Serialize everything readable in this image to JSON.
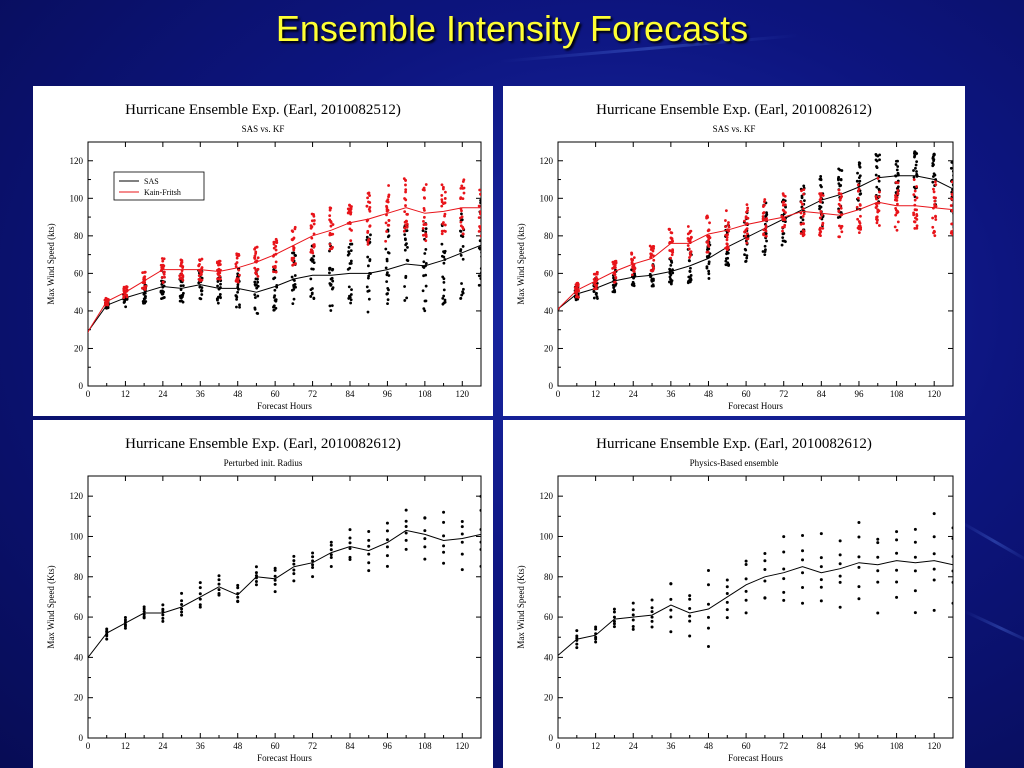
{
  "slide": {
    "title": "Ensemble Intensity Forecasts",
    "background": "#0d1580",
    "title_color": "#ffff33"
  },
  "colors": {
    "black": "#000000",
    "red": "#e8141a"
  },
  "chart_data": [
    {
      "type": "line",
      "title": "Hurricane Ensemble Exp. (Earl, 2010082512)",
      "subtitle": "SAS vs. KF",
      "xlabel": "Forecast Hours",
      "ylabel": "Max Wind Speed (kts)",
      "xlim": [
        0,
        126
      ],
      "ylim": [
        0,
        130
      ],
      "xticks": [
        0,
        12,
        24,
        36,
        48,
        60,
        72,
        84,
        96,
        108,
        120
      ],
      "yticks": [
        0,
        20,
        40,
        60,
        80,
        100,
        120
      ],
      "legend": {
        "placement": "top-left",
        "entries": [
          "SAS",
          "Kain-Fritsh"
        ]
      },
      "series": [
        {
          "name": "SAS",
          "color": "#000000",
          "x": [
            0,
            6,
            12,
            18,
            24,
            30,
            36,
            42,
            48,
            54,
            60,
            66,
            72,
            78,
            84,
            90,
            96,
            102,
            108,
            114,
            120,
            126
          ],
          "mean": [
            29,
            43,
            47,
            50,
            53,
            52,
            54,
            52,
            52,
            50,
            53,
            57,
            59,
            59,
            60,
            60,
            62,
            65,
            64,
            67,
            71,
            75
          ],
          "spread": [
            0,
            2,
            5,
            6,
            8,
            9,
            8,
            9,
            11,
            12,
            13,
            15,
            17,
            19,
            20,
            21,
            22,
            23,
            24,
            24,
            25,
            25
          ]
        },
        {
          "name": "Kain-Fritsh",
          "color": "#e8141a",
          "x": [
            0,
            6,
            12,
            18,
            24,
            30,
            36,
            42,
            48,
            54,
            60,
            66,
            72,
            78,
            84,
            90,
            96,
            102,
            108,
            114,
            120,
            126
          ],
          "mean": [
            29,
            45,
            50,
            56,
            62,
            62,
            62,
            61,
            63,
            66,
            70,
            75,
            80,
            83,
            87,
            89,
            92,
            95,
            92,
            93,
            95,
            95
          ],
          "spread": [
            0,
            2,
            3,
            5,
            7,
            6,
            6,
            6,
            8,
            9,
            10,
            11,
            12,
            12,
            13,
            14,
            15,
            16,
            16,
            16,
            16,
            16
          ]
        }
      ]
    },
    {
      "type": "line",
      "title": "Hurricane Ensemble Exp. (Earl, 2010082612)",
      "subtitle": "SAS vs. KF",
      "xlabel": "Forecast Hours",
      "ylabel": "Max Wind Speed (kts)",
      "xlim": [
        0,
        126
      ],
      "ylim": [
        0,
        130
      ],
      "xticks": [
        0,
        12,
        24,
        36,
        48,
        60,
        72,
        84,
        96,
        108,
        120
      ],
      "yticks": [
        0,
        20,
        40,
        60,
        80,
        100,
        120
      ],
      "series": [
        {
          "name": "SAS",
          "color": "#000000",
          "x": [
            0,
            6,
            12,
            18,
            24,
            30,
            36,
            42,
            48,
            54,
            60,
            66,
            72,
            78,
            84,
            90,
            96,
            102,
            108,
            114,
            120,
            126
          ],
          "mean": [
            41,
            49,
            52,
            56,
            58,
            59,
            61,
            64,
            68,
            74,
            79,
            84,
            89,
            94,
            99,
            102,
            106,
            111,
            112,
            112,
            110,
            105
          ],
          "spread": [
            0,
            4,
            6,
            6,
            6,
            6,
            7,
            9,
            11,
            12,
            14,
            14,
            14,
            14,
            14,
            14,
            14,
            13,
            12,
            13,
            14,
            16
          ]
        },
        {
          "name": "Kain-Fritsh",
          "color": "#e8141a",
          "x": [
            0,
            6,
            12,
            18,
            24,
            30,
            36,
            42,
            48,
            54,
            60,
            66,
            72,
            78,
            84,
            90,
            96,
            102,
            108,
            114,
            120,
            126
          ],
          "mean": [
            41,
            51,
            56,
            61,
            65,
            68,
            76,
            76,
            81,
            83,
            86,
            88,
            90,
            93,
            92,
            91,
            94,
            98,
            96,
            96,
            95,
            94
          ],
          "spread": [
            0,
            4,
            5,
            6,
            6,
            7,
            8,
            9,
            10,
            11,
            12,
            12,
            13,
            13,
            13,
            14,
            14,
            14,
            14,
            14,
            15,
            16
          ]
        }
      ]
    },
    {
      "type": "line",
      "title": "Hurricane Ensemble Exp. (Earl, 2010082612)",
      "subtitle": "Perturbed init. Radius",
      "xlabel": "Forecast Hours",
      "ylabel": "Max Wind Speed (Kts)",
      "xlim": [
        0,
        126
      ],
      "ylim": [
        0,
        130
      ],
      "xticks": [
        0,
        12,
        24,
        36,
        48,
        60,
        72,
        84,
        96,
        108,
        120
      ],
      "yticks": [
        0,
        20,
        40,
        60,
        80,
        100,
        120
      ],
      "series": [
        {
          "name": "",
          "color": "#000000",
          "x": [
            0,
            6,
            12,
            18,
            24,
            30,
            36,
            42,
            48,
            54,
            60,
            66,
            72,
            78,
            84,
            90,
            96,
            102,
            108,
            114,
            120,
            126
          ],
          "mean": [
            40,
            52,
            57,
            62,
            62,
            65,
            70,
            75,
            71,
            80,
            79,
            85,
            87,
            92,
            95,
            93,
            97,
            103,
            101,
            98,
            99,
            101
          ],
          "spread": [
            0,
            3,
            4,
            4,
            5,
            7,
            9,
            7,
            6,
            5,
            7,
            9,
            8,
            8,
            9,
            11,
            12,
            13,
            15,
            15,
            16,
            20
          ]
        }
      ]
    },
    {
      "type": "line",
      "title": "Hurricane Ensemble Exp. (Earl, 2010082612)",
      "subtitle": "Physics-Based ensemble",
      "xlabel": "Forecast Hours",
      "ylabel": "Max Wind Speed (Kts)",
      "xlim": [
        0,
        126
      ],
      "ylim": [
        0,
        130
      ],
      "xticks": [
        0,
        12,
        24,
        36,
        48,
        60,
        72,
        84,
        96,
        108,
        120
      ],
      "yticks": [
        0,
        20,
        40,
        60,
        80,
        100,
        120
      ],
      "series": [
        {
          "name": "",
          "color": "#000000",
          "x": [
            0,
            6,
            12,
            18,
            24,
            30,
            36,
            42,
            48,
            54,
            60,
            66,
            72,
            78,
            84,
            90,
            96,
            102,
            108,
            114,
            120,
            126
          ],
          "mean": [
            41,
            49,
            51,
            59,
            60,
            61,
            66,
            62,
            64,
            70,
            76,
            80,
            82,
            85,
            82,
            84,
            87,
            86,
            88,
            87,
            88,
            86
          ],
          "spread": [
            0,
            5,
            6,
            6,
            8,
            9,
            18,
            12,
            22,
            16,
            18,
            19,
            18,
            20,
            20,
            21,
            22,
            24,
            24,
            26,
            25,
            23
          ]
        }
      ]
    }
  ]
}
